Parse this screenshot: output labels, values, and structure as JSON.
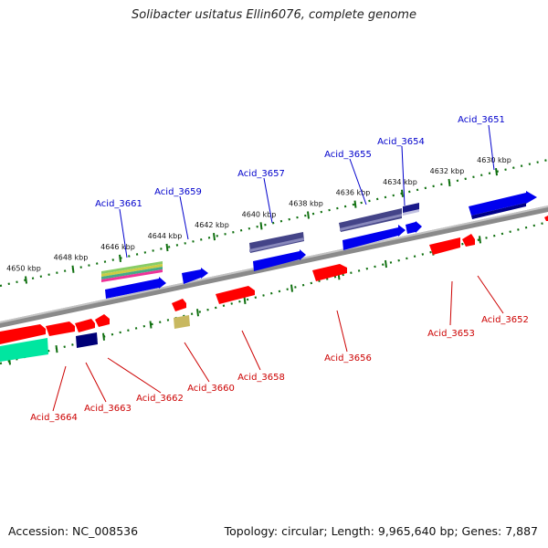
{
  "title": "Solibacter usitatus Ellin6076, complete genome",
  "footer": {
    "accession": "Accession: NC_008536",
    "stats": "Topology: circular; Length: 9,965,640 bp; Genes: 7,887"
  },
  "colors": {
    "forward_label": "#0000cc",
    "reverse_label": "#cc0000",
    "backbone": "#808080",
    "tick": "#107010"
  },
  "ticks": [
    "4630 kbp",
    "4632 kbp",
    "4634 kbp",
    "4636 kbp",
    "4638 kbp",
    "4640 kbp",
    "4642 kbp",
    "4644 kbp",
    "4646 kbp",
    "4648 kbp",
    "4650 kbp"
  ],
  "forward_genes": [
    "Acid_3651",
    "Acid_3654",
    "Acid_3655",
    "Acid_3657",
    "Acid_3659",
    "Acid_3661"
  ],
  "reverse_genes": [
    "Acid_3652",
    "Acid_3653",
    "Acid_3656",
    "Acid_3658",
    "Acid_3660",
    "Acid_3662",
    "Acid_3663",
    "Acid_3664"
  ]
}
